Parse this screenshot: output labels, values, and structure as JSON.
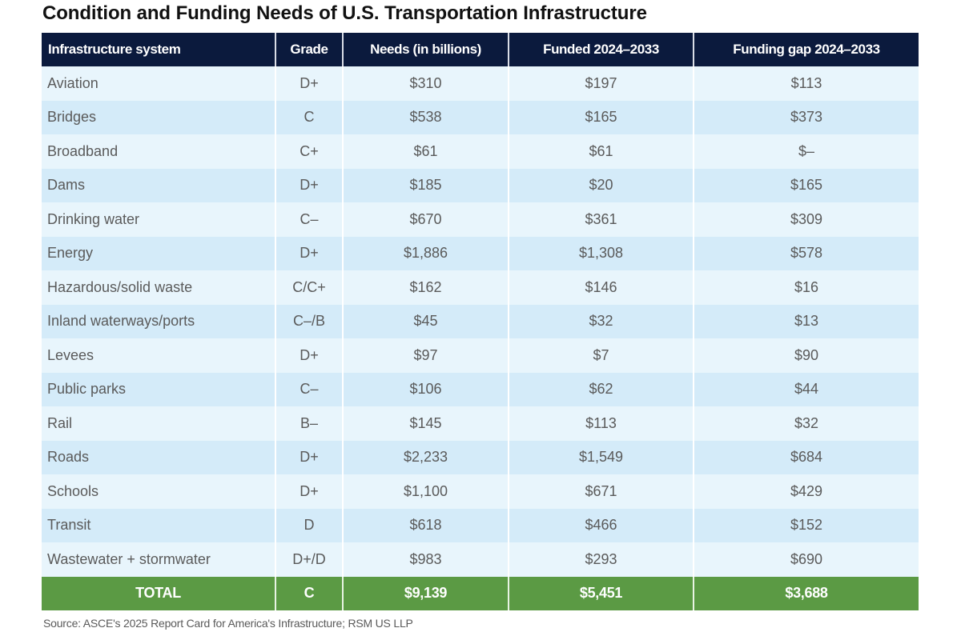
{
  "title": "Condition and Funding Needs of U.S. Transportation Infrastructure",
  "colors": {
    "header_bg": "#0b1a3d",
    "row_light": "#e8f5fc",
    "row_dark": "#d4ebf9",
    "total_bg": "#5b9a44",
    "body_text": "#5a5a5a"
  },
  "table": {
    "columns": [
      "Infrastructure system",
      "Grade",
      "Needs (in billions)",
      "Funded 2024–2033",
      "Funding gap 2024–2033"
    ],
    "rows": [
      {
        "system": "Aviation",
        "grade": "D+",
        "needs": "$310",
        "funded": "$197",
        "gap": "$113"
      },
      {
        "system": "Bridges",
        "grade": "C",
        "needs": "$538",
        "funded": "$165",
        "gap": "$373"
      },
      {
        "system": "Broadband",
        "grade": "C+",
        "needs": "$61",
        "funded": "$61",
        "gap": "$–"
      },
      {
        "system": "Dams",
        "grade": "D+",
        "needs": "$185",
        "funded": "$20",
        "gap": "$165"
      },
      {
        "system": "Drinking water",
        "grade": "C–",
        "needs": "$670",
        "funded": "$361",
        "gap": "$309"
      },
      {
        "system": "Energy",
        "grade": "D+",
        "needs": "$1,886",
        "funded": "$1,308",
        "gap": "$578"
      },
      {
        "system": "Hazardous/solid waste",
        "grade": "C/C+",
        "needs": "$162",
        "funded": "$146",
        "gap": "$16"
      },
      {
        "system": "Inland waterways/ports",
        "grade": "C–/B",
        "needs": "$45",
        "funded": "$32",
        "gap": "$13"
      },
      {
        "system": "Levees",
        "grade": "D+",
        "needs": "$97",
        "funded": "$7",
        "gap": "$90"
      },
      {
        "system": "Public parks",
        "grade": "C–",
        "needs": "$106",
        "funded": "$62",
        "gap": "$44"
      },
      {
        "system": "Rail",
        "grade": "B–",
        "needs": "$145",
        "funded": "$113",
        "gap": "$32"
      },
      {
        "system": "Roads",
        "grade": "D+",
        "needs": "$2,233",
        "funded": "$1,549",
        "gap": "$684"
      },
      {
        "system": "Schools",
        "grade": "D+",
        "needs": "$1,100",
        "funded": "$671",
        "gap": "$429"
      },
      {
        "system": "Transit",
        "grade": "D",
        "needs": "$618",
        "funded": "$466",
        "gap": "$152"
      },
      {
        "system": "Wastewater + stormwater",
        "grade": "D+/D",
        "needs": "$983",
        "funded": "$293",
        "gap": "$690"
      }
    ],
    "total": {
      "system": "TOTAL",
      "grade": "C",
      "needs": "$9,139",
      "funded": "$5,451",
      "gap": "$3,688"
    }
  },
  "source": "Source: ASCE's 2025 Report Card for America's Infrastructure; RSM US LLP"
}
